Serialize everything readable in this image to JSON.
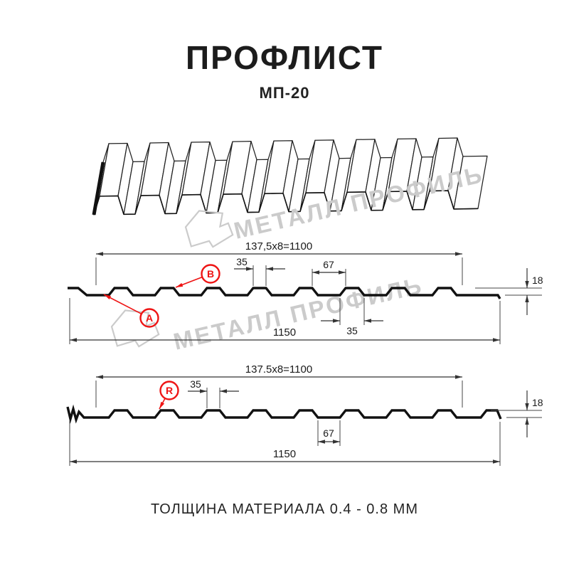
{
  "header": {
    "title": "ПРОФЛИСТ",
    "subtitle": "МП-20"
  },
  "watermark": {
    "brand": "МЕТАЛЛ ПРОФИЛЬ"
  },
  "footer": {
    "note": "ТОЛЩИНА МАТЕРИАЛА 0.4 - 0.8 ММ"
  },
  "profile_top": {
    "working_width": "137,5x8=1100",
    "rib_top_width": "35",
    "groove_width": "67",
    "height": "18",
    "rib_bottom_width": "35",
    "overall_width": "1150",
    "labels": {
      "a": "A",
      "b": "B"
    }
  },
  "profile_bottom": {
    "working_width": "137.5x8=1100",
    "rib_top_width": "35",
    "groove_width": "67",
    "height": "18",
    "overall_width": "1150",
    "labels": {
      "r": "R"
    }
  },
  "colors": {
    "accent_red": "#ee1414",
    "line": "#1a1a1a",
    "watermark": "#cbcbcb"
  }
}
